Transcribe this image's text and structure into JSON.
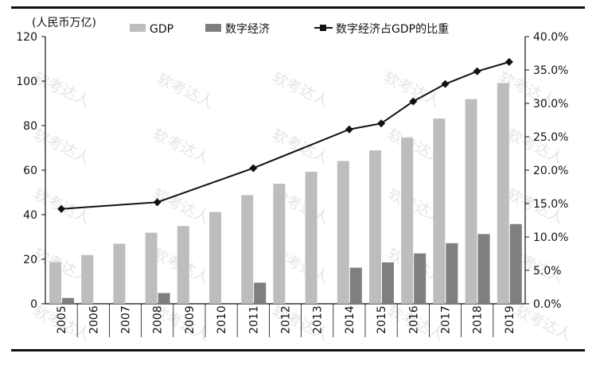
{
  "chart_data": {
    "type": "bar",
    "unit_label": "(人民币万亿)",
    "categories": [
      "2005",
      "2006",
      "2007",
      "2008",
      "2009",
      "2010",
      "2011",
      "2012",
      "2013",
      "2014",
      "2015",
      "2016",
      "2017",
      "2018",
      "2019"
    ],
    "series": [
      {
        "name": "GDP",
        "kind": "bar",
        "axis": "left",
        "color": "#bdbdbd",
        "values": [
          18.7,
          21.9,
          27.0,
          31.9,
          34.9,
          41.2,
          48.8,
          53.9,
          59.3,
          64.1,
          68.9,
          74.6,
          83.2,
          91.9,
          99.1
        ]
      },
      {
        "name": "数字经济",
        "kind": "bar",
        "axis": "left",
        "color": "#7f7f7f",
        "values": [
          2.6,
          null,
          null,
          4.8,
          null,
          null,
          9.5,
          null,
          null,
          16.2,
          18.6,
          22.6,
          27.2,
          31.3,
          35.8
        ]
      },
      {
        "name": "数字经济占GDP的比重",
        "kind": "line",
        "axis": "right",
        "color": "#111111",
        "values": [
          14.2,
          null,
          null,
          15.2,
          null,
          null,
          20.3,
          null,
          null,
          26.1,
          27.0,
          30.3,
          32.9,
          34.8,
          36.2
        ]
      }
    ],
    "y_left": {
      "min": 0,
      "max": 120,
      "ticks": [
        "0",
        "20",
        "40",
        "60",
        "80",
        "100",
        "120"
      ]
    },
    "y_right": {
      "min": 0,
      "max": 40,
      "ticks": [
        "0.0%",
        "5.0%",
        "10.0%",
        "15.0%",
        "20.0%",
        "25.0%",
        "30.0%",
        "35.0%",
        "40.0%"
      ]
    },
    "legend_position": "top",
    "watermark": "软考达人"
  }
}
